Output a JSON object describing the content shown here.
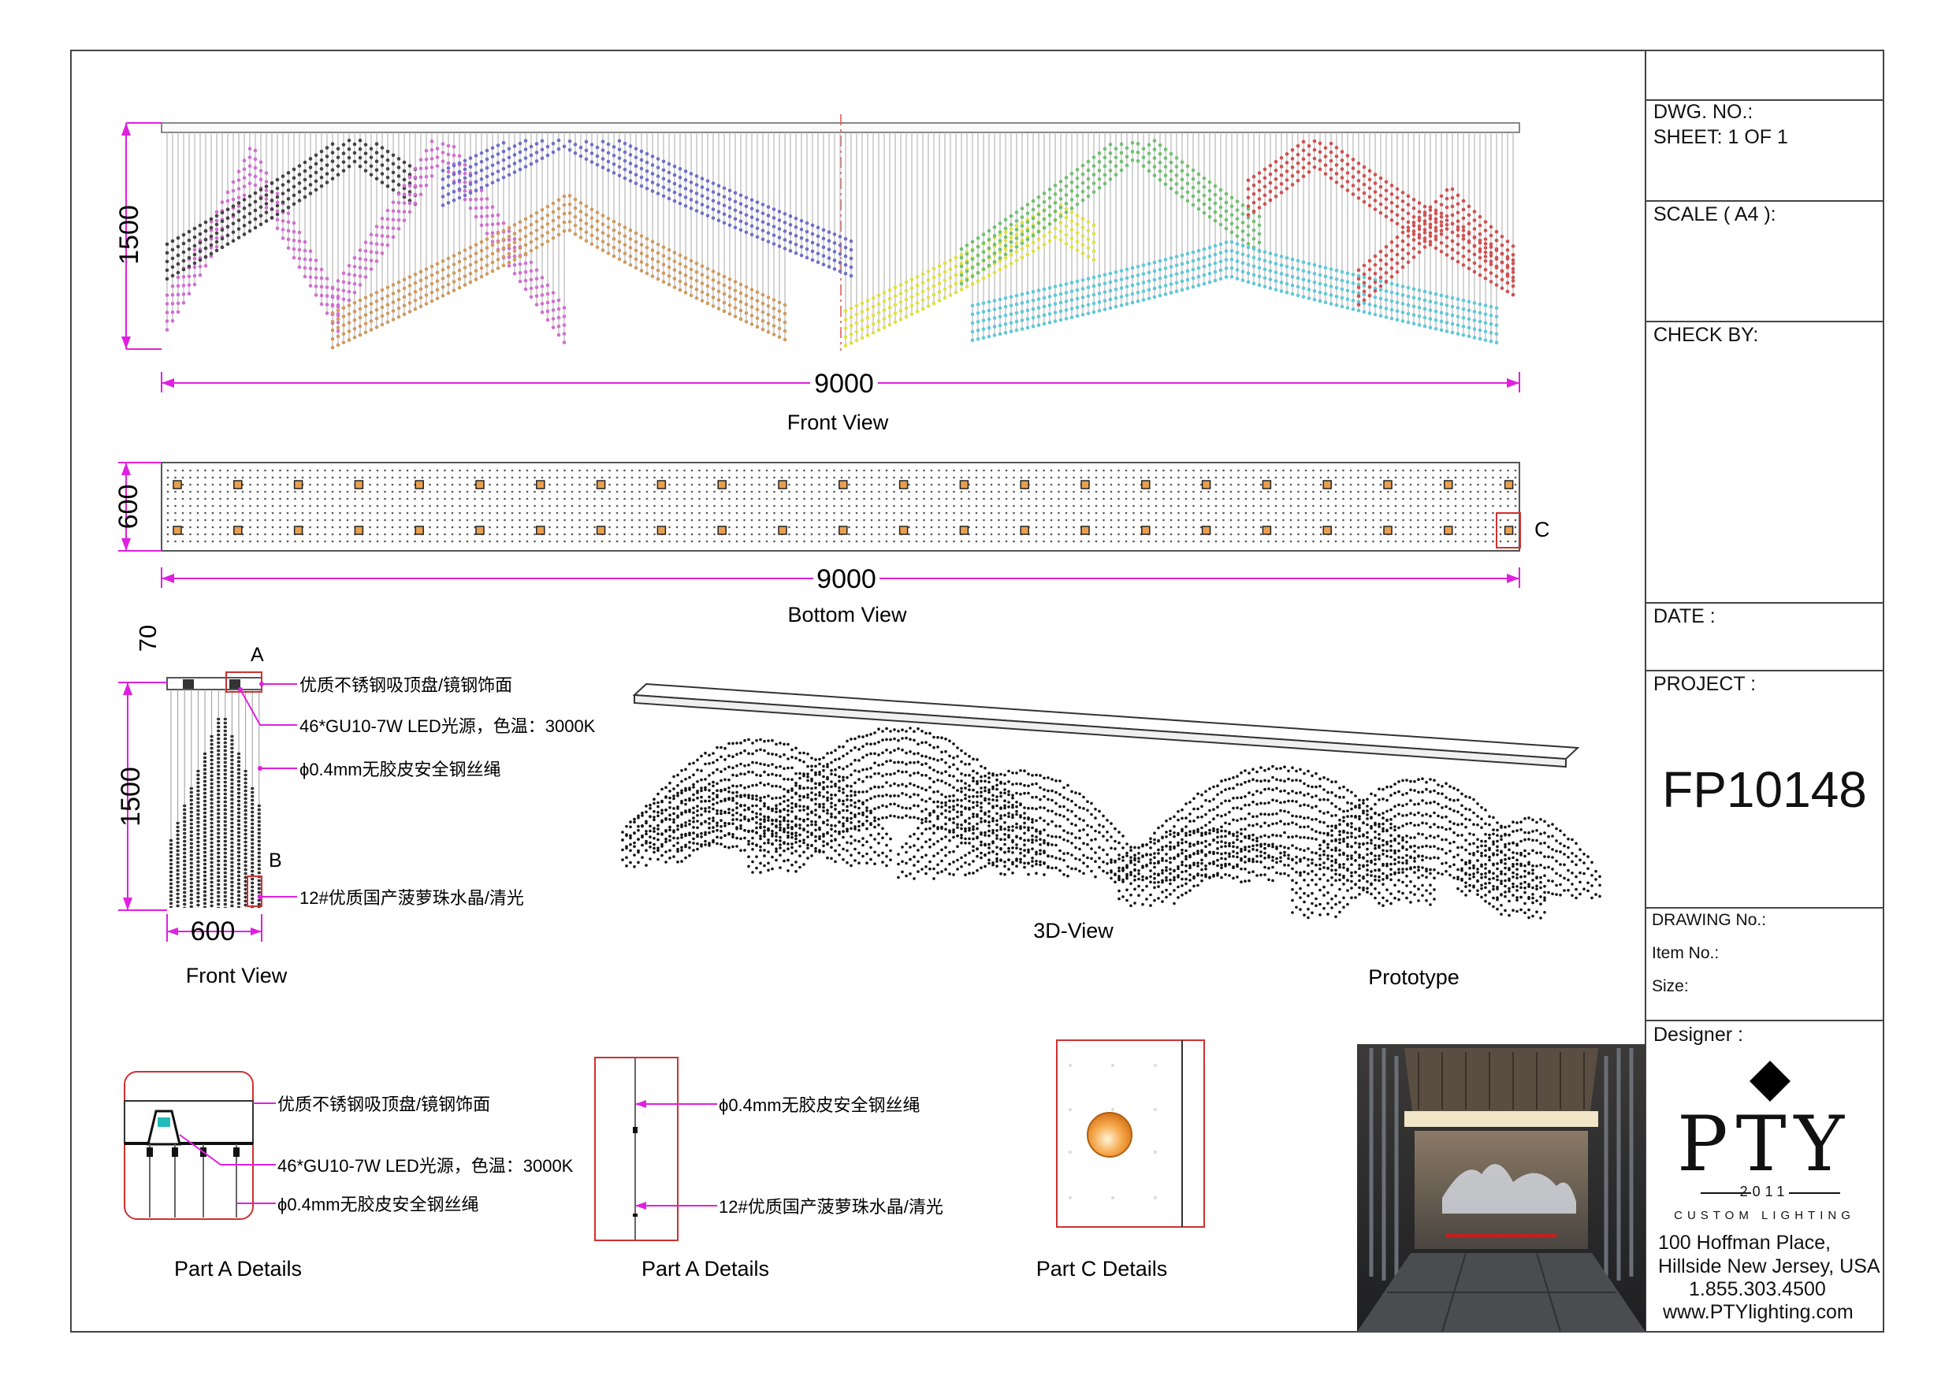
{
  "title_block": {
    "dwg_no": "DWG. NO.:",
    "sheet": "SHEET: 1 OF 1",
    "scale": "SCALE ( A4 ):",
    "check_by": "CHECK BY:",
    "date": "DATE :",
    "project_label": "PROJECT :",
    "project_code": "FP10148",
    "drawing_no": "DRAWING No.:",
    "item_no": "Item No.:",
    "size": "Size:",
    "designer": "Designer :"
  },
  "brand": {
    "name": "PTY",
    "year": "2011",
    "tagline": "CUSTOM LIGHTING",
    "address_line1": "100 Hoffman Place,",
    "address_line2": "Hillside New Jersey, USA",
    "phone": "1.855.303.4500",
    "website": "www.PTYlighting.com"
  },
  "views": {
    "front_top": {
      "caption": "Front View",
      "height_dim": "1500",
      "width_dim": "9000"
    },
    "bottom": {
      "caption": "Bottom View",
      "depth_dim": "600",
      "width_dim": "9000",
      "callout": "C"
    },
    "side_front": {
      "caption": "Front View",
      "top_dim": "70",
      "height_dim": "1500",
      "width_dim": "600",
      "callout_a": "A",
      "callout_b": "B",
      "labels": [
        "优质不锈钢吸顶盘/镜钢饰面",
        "46*GU10-7W LED光源，色温：3000K",
        "ϕ0.4mm无胶皮安全钢丝绳",
        "12#优质国产菠萝珠水晶/清光"
      ]
    },
    "three_d": {
      "caption": "3D-View"
    },
    "prototype": {
      "caption": "Prototype"
    },
    "part_a1": {
      "caption": "Part A Details",
      "labels": [
        "优质不锈钢吸顶盘/镜钢饰面",
        "46*GU10-7W LED光源，色温：3000K",
        "ϕ0.4mm无胶皮安全钢丝绳"
      ]
    },
    "part_a2": {
      "caption": "Part A Details",
      "labels": [
        "ϕ0.4mm无胶皮安全钢丝绳",
        "12#优质国产菠萝珠水晶/清光"
      ]
    },
    "part_c": {
      "caption": "Part C Details"
    }
  },
  "colors": {
    "dimension": "#e020e0",
    "callout": "#d03030",
    "mountain_series": [
      "#444444",
      "#d070d0",
      "#d09a60",
      "#7070c8",
      "#e0e040",
      "#70c070",
      "#60c8d8",
      "#d05050"
    ]
  }
}
